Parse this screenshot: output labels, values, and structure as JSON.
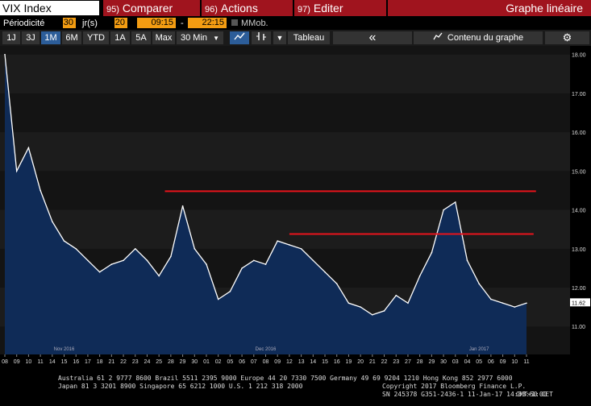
{
  "toolbar": {
    "ticker": "VIX Index",
    "compare_num": "95)",
    "compare_label": "Comparer",
    "actions_num": "96)",
    "actions_label": "Actions",
    "edit_num": "97)",
    "edit_label": "Editer",
    "graph_type": "Graphe linéaire"
  },
  "settings": {
    "periodicity_label": "Périodicité",
    "periodicity_value": "30",
    "unit_label": "jr(s)",
    "field2": "20",
    "start_time": "09:15",
    "separator": "-",
    "end_time": "22:15",
    "mmob_label": "MMob."
  },
  "periods": [
    "1J",
    "3J",
    "1M",
    "6M",
    "YTD",
    "1A",
    "5A",
    "Max"
  ],
  "active_period": "1M",
  "interval": "30 Min",
  "interval_arrow": "▼",
  "table_label": "Tableau",
  "collapse_icon": "«",
  "chart_content_label": "Contenu du graphe",
  "colors": {
    "accent": "#a0141e",
    "line": "#ffffff",
    "fill": "#0f2b57",
    "hline": "#e8131b",
    "field": "#f39c12"
  },
  "chart_data": {
    "type": "area",
    "ylim": [
      10.3,
      18.2
    ],
    "yticks": [
      "18.00",
      "17.00",
      "16.00",
      "15.00",
      "14.00",
      "13.00",
      "12.00",
      "11.00"
    ],
    "ytick_values": [
      18,
      17,
      16,
      15,
      14,
      13,
      12,
      11
    ],
    "last_value": "11.62",
    "xticks": [
      "08",
      "09",
      "10",
      "11",
      "14",
      "15",
      "16",
      "17",
      "18",
      "21",
      "22",
      "23",
      "24",
      "25",
      "28",
      "29",
      "30",
      "01",
      "02",
      "05",
      "06",
      "07",
      "08",
      "09",
      "12",
      "13",
      "14",
      "15",
      "16",
      "19",
      "20",
      "21",
      "22",
      "23",
      "27",
      "28",
      "29",
      "30",
      "03",
      "04",
      "05",
      "06",
      "09",
      "10",
      "11"
    ],
    "month_labels": [
      {
        "label": "Nov 2016",
        "at": 5
      },
      {
        "label": "Dec 2016",
        "at": 22
      },
      {
        "label": "Jan 2017",
        "at": 40
      }
    ],
    "x": [
      0,
      1,
      2,
      3,
      4,
      5,
      6,
      7,
      8,
      9,
      10,
      11,
      12,
      13,
      14,
      15,
      16,
      17,
      18,
      19,
      20,
      21,
      22,
      23,
      24,
      25,
      26,
      27,
      28,
      29,
      30,
      31,
      32,
      33,
      34,
      35,
      36,
      37,
      38,
      39,
      40,
      41,
      42,
      43,
      44
    ],
    "values": [
      18.0,
      15.0,
      15.6,
      14.5,
      13.7,
      13.2,
      13.0,
      12.7,
      12.4,
      12.6,
      12.7,
      13.0,
      12.7,
      12.3,
      12.8,
      14.1,
      13.0,
      12.6,
      11.7,
      11.9,
      12.5,
      12.7,
      12.6,
      13.2,
      13.1,
      13.0,
      12.7,
      12.4,
      12.1,
      11.6,
      11.5,
      11.3,
      11.4,
      11.8,
      11.6,
      12.3,
      12.9,
      14.0,
      14.2,
      12.7,
      12.1,
      11.7,
      11.6,
      11.5,
      11.6
    ],
    "hlines": [
      {
        "y": 14.48,
        "from": 13.5,
        "to": 44.8
      },
      {
        "y": 13.38,
        "from": 24.0,
        "to": 44.6
      }
    ]
  },
  "footer": {
    "line1": "Australia 61 2 9777 8600 Brazil 5511 2395 9000 Europe 44 20 7330 7500 Germany 49 69 9204 1210 Hong Kong 852 2977 6000",
    "line2": "Japan 81 3 3201 8900       Singapore 65 6212 1000       U.S. 1 212 318 2000",
    "line3": "Copyright 2017 Bloomberg Finance L.P.",
    "line4": "SN 245378 G351-2436-1 11-Jan-17 14:53:50 CET",
    "line5": "GMT+1:00"
  }
}
